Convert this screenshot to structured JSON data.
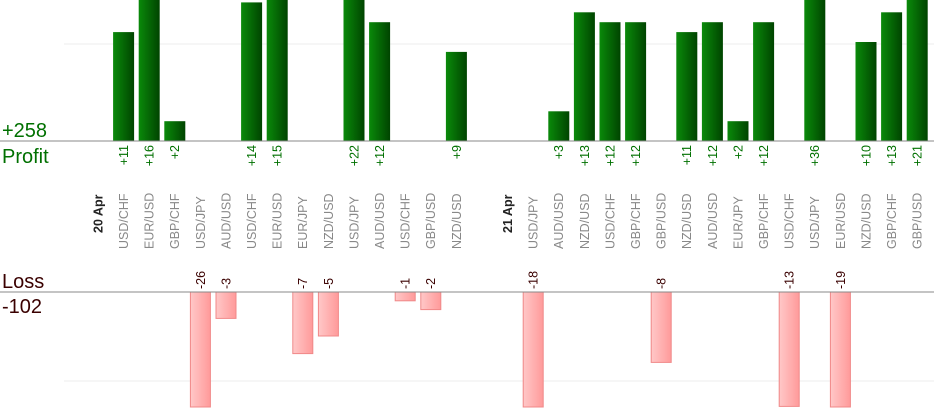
{
  "summary": {
    "profit_total": "+258",
    "profit_label": "Profit",
    "loss_label": "Loss",
    "loss_total": "-102"
  },
  "colors": {
    "profit": "#006400",
    "loss": "#ffb0b0",
    "profit_text": "#007000",
    "loss_text": "#3a0000"
  },
  "chart_data": {
    "type": "bar",
    "title": "",
    "xlabel": "",
    "ylabel": "",
    "grid": true,
    "profit_ylim": [
      0,
      14
    ],
    "loss_ylim": [
      -13,
      0
    ],
    "groups": [
      {
        "date": "20 Apr",
        "trades": [
          {
            "pair": "USD/CHF",
            "value": 11
          },
          {
            "pair": "EUR/USD",
            "value": 16
          },
          {
            "pair": "GBP/CHF",
            "value": 2
          },
          {
            "pair": "USD/JPY",
            "value": -26
          },
          {
            "pair": "AUD/USD",
            "value": -3
          },
          {
            "pair": "USD/CHF",
            "value": 14
          },
          {
            "pair": "EUR/USD",
            "value": 15
          },
          {
            "pair": "EUR/JPY",
            "value": -7
          },
          {
            "pair": "NZD/USD",
            "value": -5
          },
          {
            "pair": "USD/JPY",
            "value": 22
          },
          {
            "pair": "AUD/USD",
            "value": 12
          },
          {
            "pair": "USD/CHF",
            "value": -1
          },
          {
            "pair": "GBP/USD",
            "value": -2
          },
          {
            "pair": "NZD/USD",
            "value": 9
          }
        ]
      },
      {
        "date": "21 Apr",
        "trades": [
          {
            "pair": "USD/JPY",
            "value": -18
          },
          {
            "pair": "AUD/USD",
            "value": 3
          },
          {
            "pair": "NZD/USD",
            "value": 13
          },
          {
            "pair": "USD/CHF",
            "value": 12
          },
          {
            "pair": "GBP/CHF",
            "value": 12
          },
          {
            "pair": "GBP/USD",
            "value": -8
          },
          {
            "pair": "NZD/USD",
            "value": 11
          },
          {
            "pair": "AUD/USD",
            "value": 12
          },
          {
            "pair": "EUR/JPY",
            "value": 2
          },
          {
            "pair": "GBP/CHF",
            "value": 12
          },
          {
            "pair": "USD/CHF",
            "value": -13
          },
          {
            "pair": "USD/JPY",
            "value": 36
          },
          {
            "pair": "EUR/USD",
            "value": -19
          },
          {
            "pair": "NZD/USD",
            "value": 10
          },
          {
            "pair": "GBP/CHF",
            "value": 13
          },
          {
            "pair": "GBP/USD",
            "value": 21
          }
        ]
      }
    ]
  }
}
